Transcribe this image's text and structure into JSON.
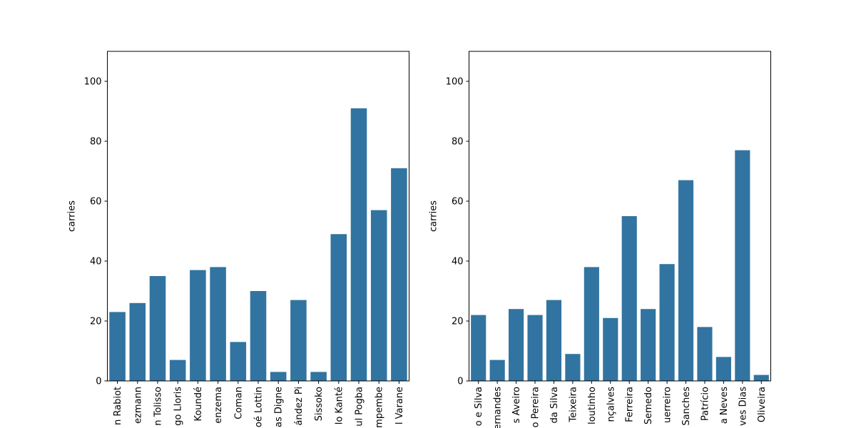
{
  "chart_data": [
    {
      "type": "bar",
      "panel": "left",
      "title": "",
      "xlabel": "",
      "ylabel": "carries",
      "ylim": [
        0,
        110
      ],
      "yticks": [
        0,
        20,
        40,
        60,
        80,
        100
      ],
      "grid": false,
      "bar_color": "#3274a1",
      "categories": [
        "n Rabiot",
        "ezmann",
        "n Tolisso",
        "go Lloris",
        "Koundé",
        "enzema",
        "Coman",
        "oé Lottin",
        "as Digne",
        "ández Pi",
        "Sissoko",
        "lo Kanté",
        "ul Pogba",
        "mpembe",
        "l Varane"
      ],
      "values": [
        23,
        26,
        35,
        7,
        37,
        38,
        13,
        30,
        3,
        27,
        3,
        49,
        91,
        57,
        71
      ]
    },
    {
      "type": "bar",
      "panel": "right",
      "title": "",
      "xlabel": "",
      "ylabel": "carries",
      "ylim": [
        0,
        110
      ],
      "yticks": [
        0,
        20,
        40,
        60,
        80,
        100
      ],
      "grid": false,
      "bar_color": "#3274a1",
      "categories": [
        "o e Silva",
        "ernandes",
        "s Aveiro",
        "o Pereira",
        "da Silva",
        "Teixeira",
        "loutinho",
        "nçalves",
        "Ferreira",
        "Semedo",
        "uerreiro",
        "Sanches",
        "Patrício",
        "a Neves",
        "ves Dias",
        "Oliveira"
      ],
      "values": [
        22,
        7,
        24,
        22,
        27,
        9,
        38,
        21,
        55,
        24,
        39,
        67,
        18,
        8,
        77,
        2
      ]
    }
  ]
}
